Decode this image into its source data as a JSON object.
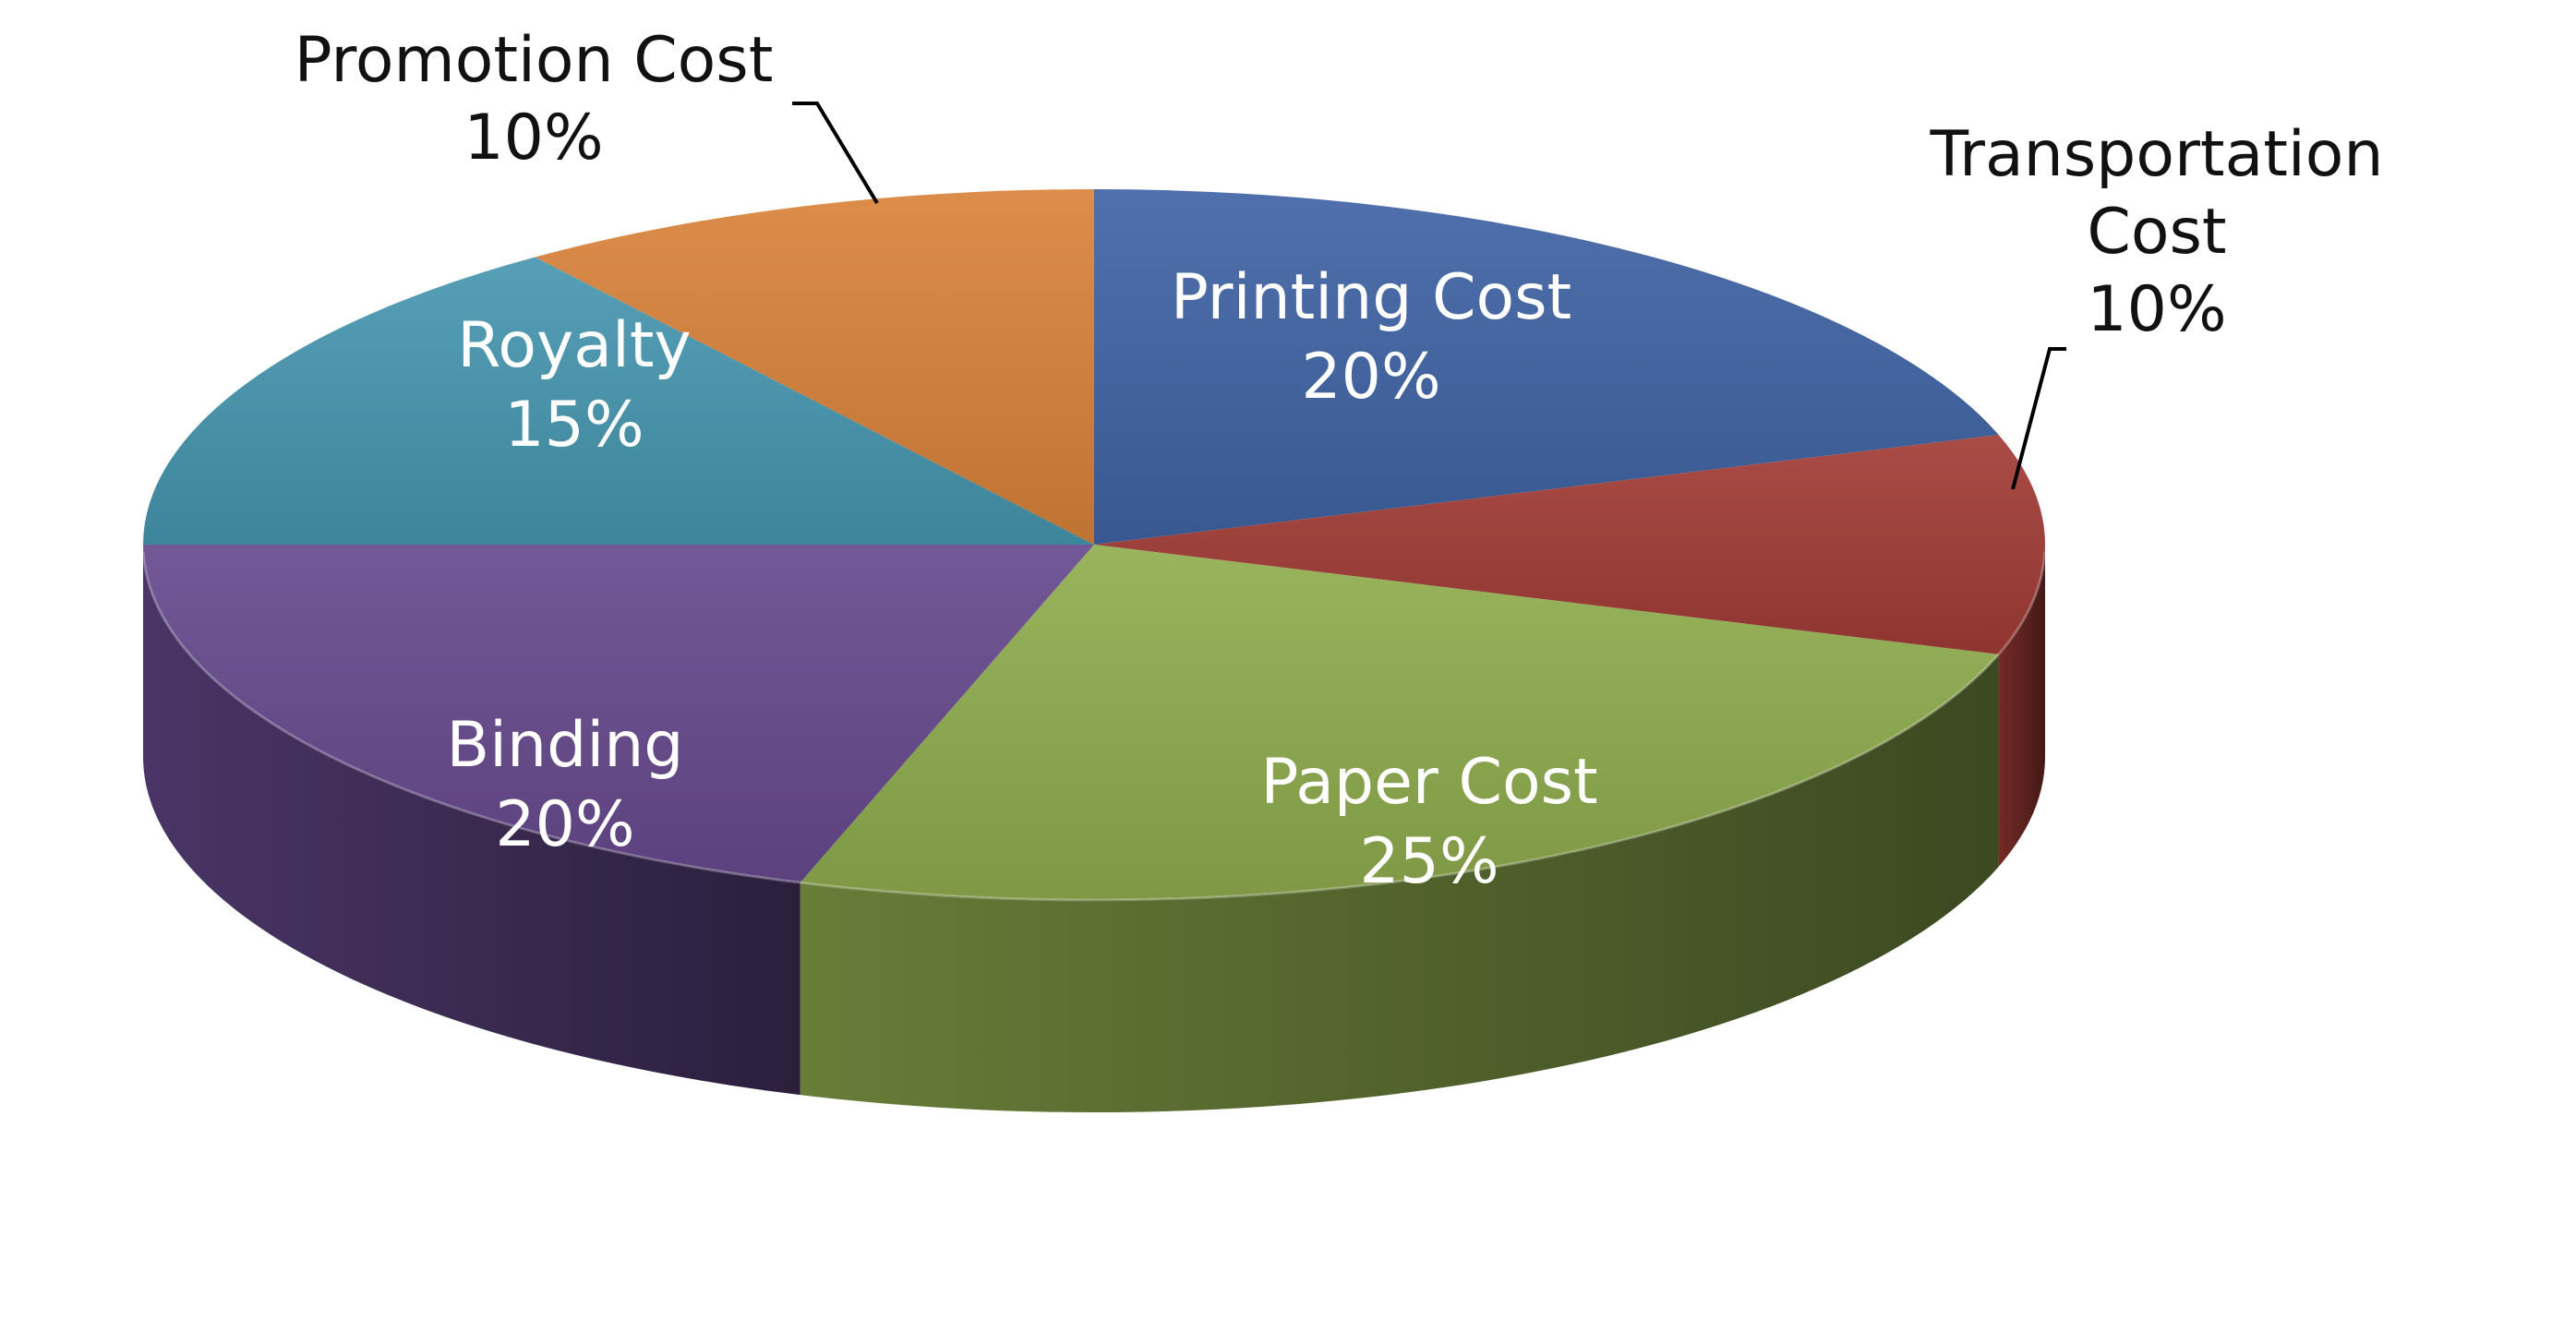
{
  "chart_data": {
    "type": "pie",
    "style": "3d",
    "title": "",
    "slices": [
      {
        "label": "Printing Cost",
        "value": 20,
        "value_label": "20%",
        "color": "#4064A5",
        "label_position": "inside"
      },
      {
        "label": "Transportation Cost",
        "label_lines": [
          "Transportation",
          "Cost"
        ],
        "value": 10,
        "value_label": "10%",
        "color": "#A33C36",
        "label_position": "outside"
      },
      {
        "label": "Paper Cost",
        "value": 25,
        "value_label": "25%",
        "color": "#8FAD4E",
        "label_position": "inside"
      },
      {
        "label": "Binding",
        "value": 20,
        "value_label": "20%",
        "color": "#674A8E",
        "label_position": "inside"
      },
      {
        "label": "Royalty",
        "value": 15,
        "value_label": "15%",
        "color": "#4797B0",
        "label_position": "inside"
      },
      {
        "label": "Promotion Cost",
        "value": 10,
        "value_label": "10%",
        "color": "#D9833A",
        "label_position": "outside"
      }
    ],
    "start_angle_deg": 90,
    "direction": "clockwise",
    "legend": "none",
    "data_labels": "category name and percentage"
  }
}
